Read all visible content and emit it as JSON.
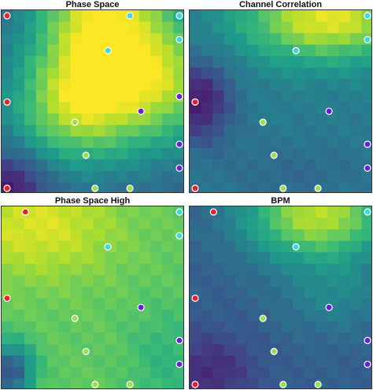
{
  "chart_data": [
    {
      "type": "heatmap",
      "title": "Phase Space",
      "grid_size": 16,
      "colormap": "viridis",
      "field": {
        "v0": 0.3,
        "bands": [
          {
            "cx": 0.55,
            "cy": 0.1,
            "sx": 0.38,
            "sy": 0.55,
            "a": 0.7
          },
          {
            "cx": 0.95,
            "cy": 0.4,
            "sx": 0.35,
            "sy": 0.35,
            "a": 0.4
          },
          {
            "cx": 0.35,
            "cy": 0.55,
            "sx": 0.35,
            "sy": 0.3,
            "a": 0.35
          },
          {
            "cx": 0.05,
            "cy": 0.95,
            "sx": 0.2,
            "sy": 0.18,
            "a": -0.25
          }
        ]
      },
      "points": [
        {
          "x": 0.03,
          "y": 0.03,
          "color": "#e8222a"
        },
        {
          "x": 0.03,
          "y": 0.5,
          "color": "#e8222a"
        },
        {
          "x": 0.03,
          "y": 0.97,
          "color": "#e8222a"
        },
        {
          "x": 0.7,
          "y": 0.03,
          "color": "#3fd7e0"
        },
        {
          "x": 0.97,
          "y": 0.03,
          "color": "#3fd7e0"
        },
        {
          "x": 0.97,
          "y": 0.16,
          "color": "#3fd7e0"
        },
        {
          "x": 0.58,
          "y": 0.22,
          "color": "#3fd7e0"
        },
        {
          "x": 0.97,
          "y": 0.47,
          "color": "#6a1fd6"
        },
        {
          "x": 0.76,
          "y": 0.55,
          "color": "#6a1fd6"
        },
        {
          "x": 0.97,
          "y": 0.73,
          "color": "#6a1fd6"
        },
        {
          "x": 0.97,
          "y": 0.86,
          "color": "#6a1fd6"
        },
        {
          "x": 0.4,
          "y": 0.61,
          "color": "#9ee04c"
        },
        {
          "x": 0.46,
          "y": 0.79,
          "color": "#9ee04c"
        },
        {
          "x": 0.51,
          "y": 0.97,
          "color": "#9ee04c"
        },
        {
          "x": 0.7,
          "y": 0.97,
          "color": "#9ee04c"
        }
      ]
    },
    {
      "type": "heatmap",
      "title": "Channel Correlation",
      "grid_size": 16,
      "colormap": "viridis",
      "field": {
        "v0": 0.42,
        "bands": [
          {
            "cx": 0.75,
            "cy": 0.05,
            "sx": 0.45,
            "sy": 0.22,
            "a": 0.55
          },
          {
            "cx": 0.05,
            "cy": 0.5,
            "sx": 0.18,
            "sy": 0.22,
            "a": -0.35
          },
          {
            "cx": 0.55,
            "cy": 0.9,
            "sx": 0.45,
            "sy": 0.2,
            "a": -0.08
          }
        ]
      },
      "points": [
        {
          "x": 0.03,
          "y": 0.5,
          "color": "#e8222a"
        },
        {
          "x": 0.03,
          "y": 0.97,
          "color": "#e8222a"
        },
        {
          "x": 0.97,
          "y": 0.03,
          "color": "#3fd7e0"
        },
        {
          "x": 0.97,
          "y": 0.16,
          "color": "#3fd7e0"
        },
        {
          "x": 0.58,
          "y": 0.22,
          "color": "#3fd7e0"
        },
        {
          "x": 0.76,
          "y": 0.55,
          "color": "#6a1fd6"
        },
        {
          "x": 0.97,
          "y": 0.73,
          "color": "#6a1fd6"
        },
        {
          "x": 0.97,
          "y": 0.86,
          "color": "#6a1fd6"
        },
        {
          "x": 0.4,
          "y": 0.61,
          "color": "#9ee04c"
        },
        {
          "x": 0.46,
          "y": 0.79,
          "color": "#9ee04c"
        },
        {
          "x": 0.51,
          "y": 0.97,
          "color": "#9ee04c"
        },
        {
          "x": 0.7,
          "y": 0.97,
          "color": "#9ee04c"
        }
      ]
    },
    {
      "type": "heatmap",
      "title": "Phase Space High",
      "grid_size": 16,
      "colormap": "viridis",
      "field": {
        "v0": 0.75,
        "bands": [
          {
            "cx": 0.2,
            "cy": 0.1,
            "sx": 0.45,
            "sy": 0.3,
            "a": 0.2
          },
          {
            "cx": 0.05,
            "cy": 0.9,
            "sx": 0.12,
            "sy": 0.15,
            "a": -0.5
          },
          {
            "cx": 0.9,
            "cy": 0.85,
            "sx": 0.2,
            "sy": 0.3,
            "a": -0.1
          }
        ]
      },
      "points": [
        {
          "x": 0.13,
          "y": 0.03,
          "color": "#e8222a"
        },
        {
          "x": 0.03,
          "y": 0.5,
          "color": "#e8222a"
        },
        {
          "x": 0.97,
          "y": 0.03,
          "color": "#3fd7e0"
        },
        {
          "x": 0.97,
          "y": 0.16,
          "color": "#3fd7e0"
        },
        {
          "x": 0.58,
          "y": 0.22,
          "color": "#3fd7e0"
        },
        {
          "x": 0.76,
          "y": 0.55,
          "color": "#6a1fd6"
        },
        {
          "x": 0.97,
          "y": 0.73,
          "color": "#6a1fd6"
        },
        {
          "x": 0.97,
          "y": 0.86,
          "color": "#6a1fd6"
        },
        {
          "x": 0.4,
          "y": 0.61,
          "color": "#9ee04c"
        },
        {
          "x": 0.46,
          "y": 0.79,
          "color": "#9ee04c"
        },
        {
          "x": 0.51,
          "y": 0.97,
          "color": "#9ee04c"
        },
        {
          "x": 0.7,
          "y": 0.97,
          "color": "#9ee04c"
        }
      ]
    },
    {
      "type": "heatmap",
      "title": "BPM",
      "grid_size": 16,
      "colormap": "viridis",
      "field": {
        "v0": 0.3,
        "bands": [
          {
            "cx": 0.7,
            "cy": 0.05,
            "sx": 0.4,
            "sy": 0.25,
            "a": 0.6
          },
          {
            "cx": 0.8,
            "cy": 0.5,
            "sx": 0.3,
            "sy": 0.2,
            "a": 0.15
          },
          {
            "cx": 0.1,
            "cy": 0.9,
            "sx": 0.25,
            "sy": 0.2,
            "a": -0.18
          }
        ]
      },
      "points": [
        {
          "x": 0.13,
          "y": 0.03,
          "color": "#e8222a"
        },
        {
          "x": 0.03,
          "y": 0.5,
          "color": "#e8222a"
        },
        {
          "x": 0.03,
          "y": 0.97,
          "color": "#e8222a"
        },
        {
          "x": 0.97,
          "y": 0.03,
          "color": "#3fd7e0"
        },
        {
          "x": 0.58,
          "y": 0.22,
          "color": "#3fd7e0"
        },
        {
          "x": 0.76,
          "y": 0.55,
          "color": "#6a1fd6"
        },
        {
          "x": 0.97,
          "y": 0.73,
          "color": "#6a1fd6"
        },
        {
          "x": 0.97,
          "y": 0.86,
          "color": "#6a1fd6"
        },
        {
          "x": 0.4,
          "y": 0.61,
          "color": "#9ee04c"
        },
        {
          "x": 0.46,
          "y": 0.79,
          "color": "#9ee04c"
        },
        {
          "x": 0.51,
          "y": 0.97,
          "color": "#9ee04c"
        },
        {
          "x": 0.7,
          "y": 0.97,
          "color": "#9ee04c"
        }
      ]
    }
  ]
}
